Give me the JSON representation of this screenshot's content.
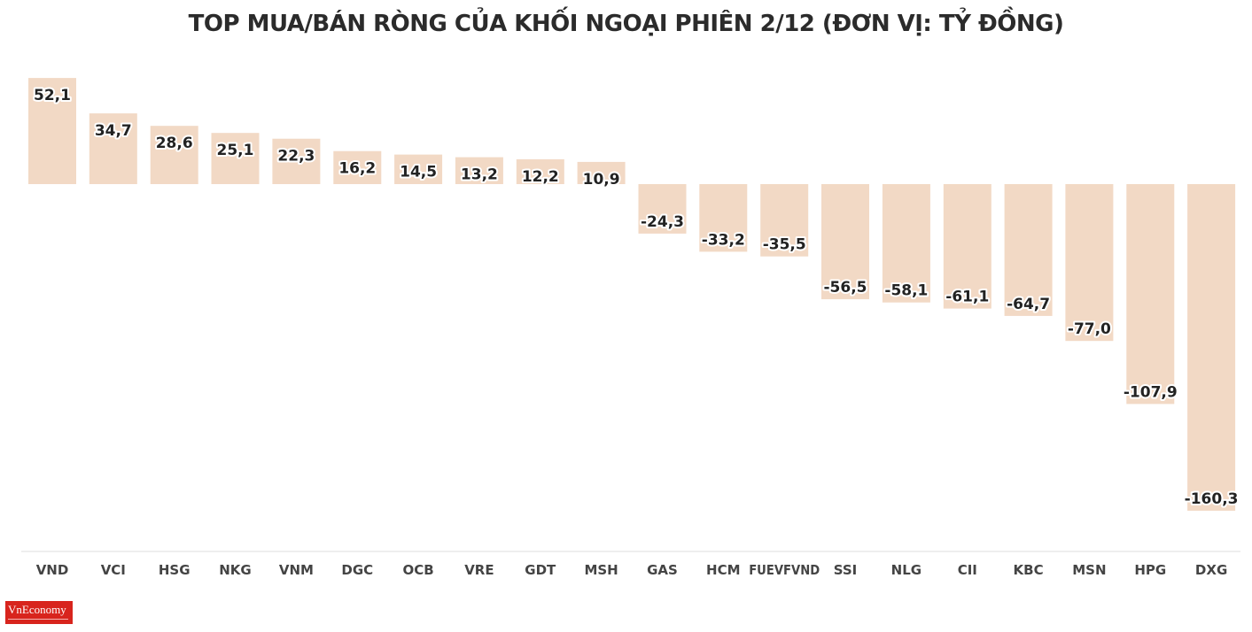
{
  "logo": {
    "text": "VnEconomy"
  },
  "chart_data": {
    "type": "bar",
    "title": "TOP MUA/BÁN RÒNG CỦA KHỐI NGOẠI PHIÊN 2/12 (ĐƠN VỊ: TỶ ĐỒNG)",
    "xlabel": "",
    "ylabel": "",
    "grid": false,
    "categories": [
      "VND",
      "VCI",
      "HSG",
      "NKG",
      "VNM",
      "DGC",
      "OCB",
      "VRE",
      "GDT",
      "MSH",
      "GAS",
      "HCM",
      "FUEVFVND",
      "SSI",
      "NLG",
      "CII",
      "KBC",
      "MSN",
      "HPG",
      "DXG"
    ],
    "values": [
      52.1,
      34.7,
      28.6,
      25.1,
      22.3,
      16.2,
      14.5,
      13.2,
      12.2,
      10.9,
      -24.3,
      -33.2,
      -35.5,
      -56.5,
      -58.1,
      -61.1,
      -64.7,
      -77.0,
      -107.9,
      -160.3
    ],
    "labels": [
      "52,1",
      "34,7",
      "28,6",
      "25,1",
      "22,3",
      "16,2",
      "14,5",
      "13,2",
      "12,2",
      "10,9",
      "-24,3",
      "-33,2",
      "-35,5",
      "-56,5",
      "-58,1",
      "-61,1",
      "-64,7",
      "-77,0",
      "-107,9",
      "-160,3"
    ],
    "colors": {
      "bar": "#f2d9c5",
      "value_text": "#222222",
      "category_text": "#444444",
      "axis": "#dddddd"
    }
  }
}
